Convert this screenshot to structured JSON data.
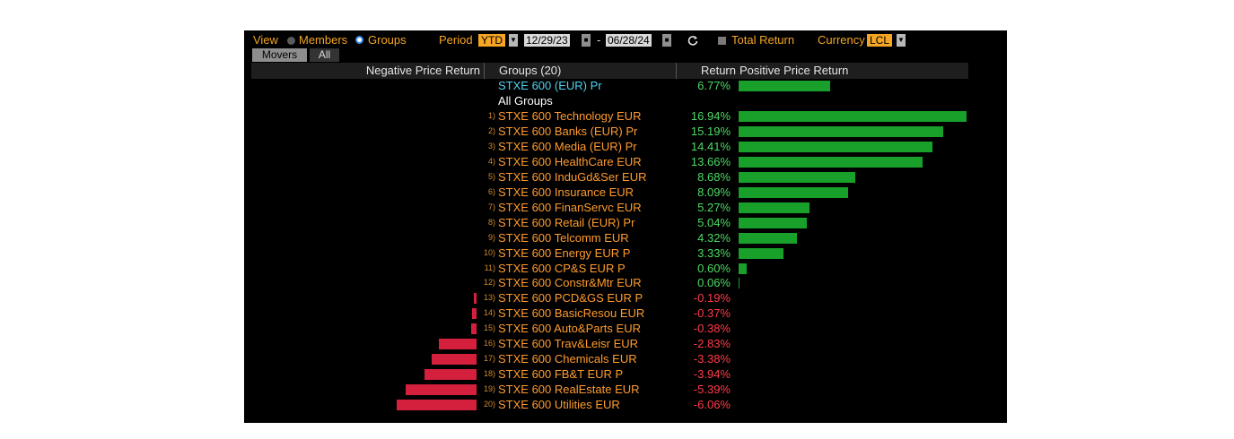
{
  "toolbar": {
    "view_label": "View",
    "members_label": "Members",
    "groups_label": "Groups",
    "period_label": "Period",
    "period_value": "YTD",
    "start_date": "12/29/23",
    "date_separator": "-",
    "end_date": "06/28/24",
    "total_return_label": "Total Return",
    "total_return_checked": false,
    "currency_label": "Currency",
    "currency_value": "LCL",
    "selected_view": "Groups"
  },
  "tabs": [
    {
      "label": "Movers",
      "active": true
    },
    {
      "label": "All",
      "active": false
    }
  ],
  "table": {
    "neg_header": "Negative Price Return",
    "group_header": "Groups (20)",
    "return_header": "Return",
    "pos_header": "Positive Price Return",
    "index_row": {
      "name": "STXE 600 (EUR) Pr",
      "return_text": "6.77%",
      "value": 6.77
    },
    "all_groups_label": "All Groups",
    "rows": [
      {
        "rank": "1)",
        "name": "STXE 600 Technology EUR",
        "return_text": "16.94%",
        "value": 16.94
      },
      {
        "rank": "2)",
        "name": "STXE 600 Banks (EUR) Pr",
        "return_text": "15.19%",
        "value": 15.19
      },
      {
        "rank": "3)",
        "name": "STXE 600 Media (EUR) Pr",
        "return_text": "14.41%",
        "value": 14.41
      },
      {
        "rank": "4)",
        "name": "STXE 600 HealthCare EUR",
        "return_text": "13.66%",
        "value": 13.66
      },
      {
        "rank": "5)",
        "name": "STXE 600 InduGd&Ser EUR",
        "return_text": "8.68%",
        "value": 8.68
      },
      {
        "rank": "6)",
        "name": "STXE 600 Insurance EUR",
        "return_text": "8.09%",
        "value": 8.09
      },
      {
        "rank": "7)",
        "name": "STXE 600 FinanServc EUR",
        "return_text": "5.27%",
        "value": 5.27
      },
      {
        "rank": "8)",
        "name": "STXE 600 Retail (EUR) Pr",
        "return_text": "5.04%",
        "value": 5.04
      },
      {
        "rank": "9)",
        "name": "STXE 600 Telcomm EUR",
        "return_text": "4.32%",
        "value": 4.32
      },
      {
        "rank": "10)",
        "name": "STXE 600 Energy EUR P",
        "return_text": "3.33%",
        "value": 3.33
      },
      {
        "rank": "11)",
        "name": "STXE 600 CP&S EUR P",
        "return_text": "0.60%",
        "value": 0.6
      },
      {
        "rank": "12)",
        "name": "STXE 600 Constr&Mtr EUR",
        "return_text": "0.06%",
        "value": 0.06
      },
      {
        "rank": "13)",
        "name": "STXE 600 PCD&GS EUR P",
        "return_text": "-0.19%",
        "value": -0.19
      },
      {
        "rank": "14)",
        "name": "STXE 600 BasicResou EUR",
        "return_text": "-0.37%",
        "value": -0.37
      },
      {
        "rank": "15)",
        "name": "STXE 600 Auto&Parts EUR",
        "return_text": "-0.38%",
        "value": -0.38
      },
      {
        "rank": "16)",
        "name": "STXE 600 Trav&Leisr EUR",
        "return_text": "-2.83%",
        "value": -2.83
      },
      {
        "rank": "17)",
        "name": "STXE 600 Chemicals EUR",
        "return_text": "-3.38%",
        "value": -3.38
      },
      {
        "rank": "18)",
        "name": "STXE 600 FB&T EUR P",
        "return_text": "-3.94%",
        "value": -3.94
      },
      {
        "rank": "19)",
        "name": "STXE 600 RealEstate EUR",
        "return_text": "-5.39%",
        "value": -5.39
      },
      {
        "rank": "20)",
        "name": "STXE 600 Utilities EUR",
        "return_text": "-6.06%",
        "value": -6.06
      }
    ]
  },
  "colors": {
    "positive_bar": "#18a02a",
    "negative_bar": "#d5203d",
    "positive_text": "#4cd964",
    "negative_text": "#ff3b4a",
    "label_orange": "#f5a623",
    "index_cyan": "#4fd2f0"
  },
  "icons": {
    "refresh": "refresh-icon",
    "calendar": "calendar-icon",
    "dropdown": "chevron-down-icon"
  }
}
